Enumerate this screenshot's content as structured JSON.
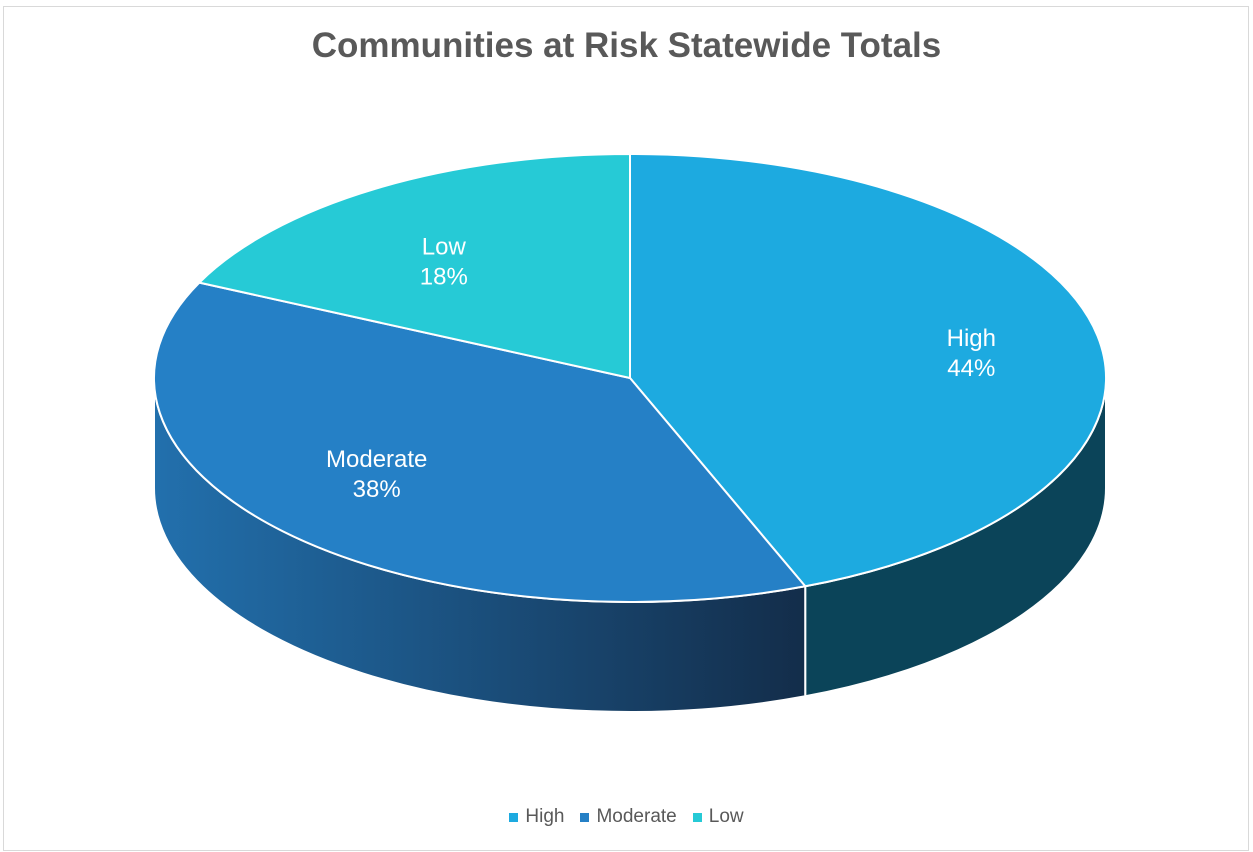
{
  "chart_data": {
    "type": "pie",
    "title": "Communities at Risk Statewide Totals",
    "categories": [
      "High",
      "Moderate",
      "Low"
    ],
    "values": [
      44,
      38,
      18
    ],
    "value_labels": [
      "44%",
      "38%",
      "18%"
    ],
    "colors": [
      "#1daae0",
      "#2580c6",
      "#26cad6"
    ],
    "side_colors": [
      "#0b4459",
      "#1d5f97",
      "#178a94"
    ],
    "style": "3d",
    "legend_position": "bottom"
  }
}
